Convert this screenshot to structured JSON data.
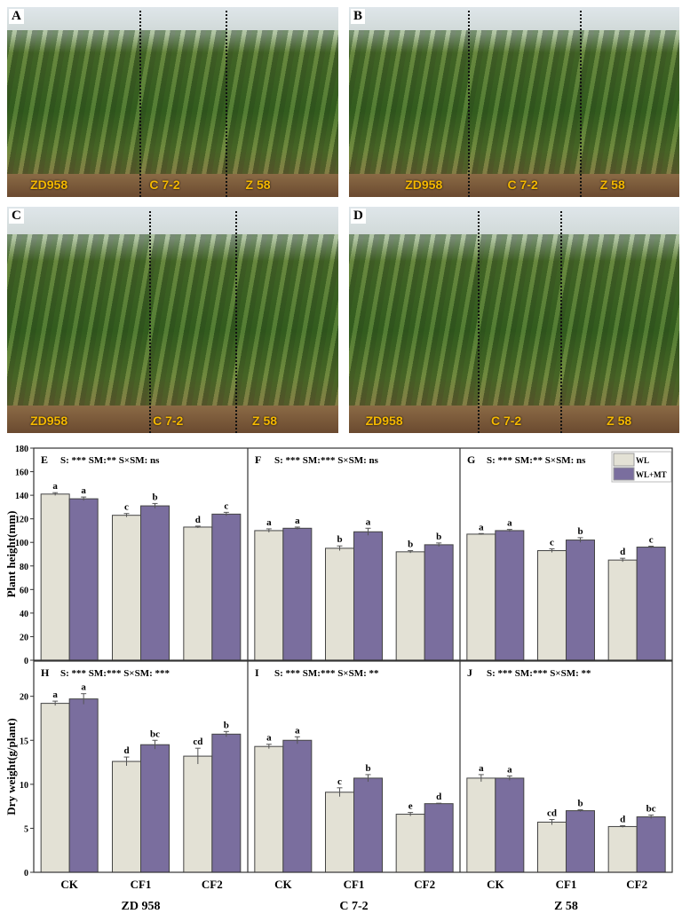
{
  "photos": [
    {
      "letter": "A",
      "cultivars": [
        "ZD958",
        "C 7-2",
        "Z 58"
      ]
    },
    {
      "letter": "B",
      "cultivars": [
        "ZD958",
        "C 7-2",
        "Z 58"
      ]
    },
    {
      "letter": "C",
      "cultivars": [
        "ZD958",
        "C 7-2",
        "Z 58"
      ]
    },
    {
      "letter": "D",
      "cultivars": [
        "ZD958",
        "C 7-2",
        "Z 58"
      ]
    }
  ],
  "colors": {
    "WL": "#e3e1d5",
    "WL+MT": "#7a6e9e"
  },
  "chart_data": {
    "type": "bar",
    "categories": [
      "CK",
      "CF1",
      "CF2"
    ],
    "genotypes": [
      "ZD 958",
      "C 7-2",
      "Z 58"
    ],
    "legend": [
      "WL",
      "WL+MT"
    ],
    "legend_position": "top-right",
    "rows": [
      {
        "ylabel": "Plant height(mm)",
        "ylim": [
          0,
          180
        ],
        "ticks": [
          0,
          20,
          40,
          60,
          80,
          100,
          120,
          140,
          160,
          180
        ],
        "panels": [
          {
            "letter": "E",
            "stats": "S: ***  SM:**  S×SM: ns",
            "WL": [
              141,
              123,
              113
            ],
            "WL_err": [
              1.2,
              1.5,
              0.8
            ],
            "WLMT": [
              137,
              131,
              124
            ],
            "WLMT_err": [
              1.5,
              2,
              1.5
            ],
            "WL_sig": [
              "a",
              "c",
              "d"
            ],
            "WLMT_sig": [
              "a",
              "b",
              "c"
            ]
          },
          {
            "letter": "F",
            "stats": "S: ***  SM:***  S×SM: ns",
            "WL": [
              110,
              95,
              92
            ],
            "WL_err": [
              1.5,
              2,
              1
            ],
            "WLMT": [
              112,
              109,
              98
            ],
            "WLMT_err": [
              1,
              3,
              1.5
            ],
            "WL_sig": [
              "a",
              "b",
              "b"
            ],
            "WLMT_sig": [
              "a",
              "a",
              "b"
            ]
          },
          {
            "letter": "G",
            "stats": "S: ***  SM:**  S×SM: ns",
            "WL": [
              107,
              93,
              85
            ],
            "WL_err": [
              0.5,
              1.5,
              1.5
            ],
            "WLMT": [
              110,
              102,
              96
            ],
            "WLMT_err": [
              1,
              2,
              0.8
            ],
            "WL_sig": [
              "a",
              "c",
              "d"
            ],
            "WLMT_sig": [
              "a",
              "b",
              "c"
            ]
          }
        ]
      },
      {
        "ylabel": "Dry weight(g/plant)",
        "ylim": [
          0,
          24
        ],
        "ticks": [
          0,
          5,
          10,
          15,
          20
        ],
        "panels": [
          {
            "letter": "H",
            "stats": "S: ***  SM:***  S×SM: ***",
            "WL": [
              19.2,
              12.6,
              13.2
            ],
            "WL_err": [
              0.25,
              0.5,
              0.9
            ],
            "WLMT": [
              19.7,
              14.5,
              15.7
            ],
            "WLMT_err": [
              0.6,
              0.5,
              0.3
            ],
            "WL_sig": [
              "a",
              "d",
              "cd"
            ],
            "WLMT_sig": [
              "a",
              "bc",
              "b"
            ]
          },
          {
            "letter": "I",
            "stats": "S: ***  SM:***  S×SM: **",
            "WL": [
              14.3,
              9.1,
              6.6
            ],
            "WL_err": [
              0.25,
              0.5,
              0.2
            ],
            "WLMT": [
              15.0,
              10.7,
              7.8
            ],
            "WLMT_err": [
              0.4,
              0.4,
              0.05
            ],
            "WL_sig": [
              "a",
              "c",
              "e"
            ],
            "WLMT_sig": [
              "a",
              "b",
              "d"
            ]
          },
          {
            "letter": "J",
            "stats": "S: ***  SM:***  S×SM: **",
            "WL": [
              10.7,
              5.7,
              5.2
            ],
            "WL_err": [
              0.4,
              0.3,
              0.1
            ],
            "WLMT": [
              10.7,
              7.0,
              6.3
            ],
            "WLMT_err": [
              0.25,
              0.1,
              0.2
            ],
            "WL_sig": [
              "a",
              "cd",
              "d"
            ],
            "WLMT_sig": [
              "a",
              "b",
              "bc"
            ]
          }
        ]
      }
    ]
  }
}
